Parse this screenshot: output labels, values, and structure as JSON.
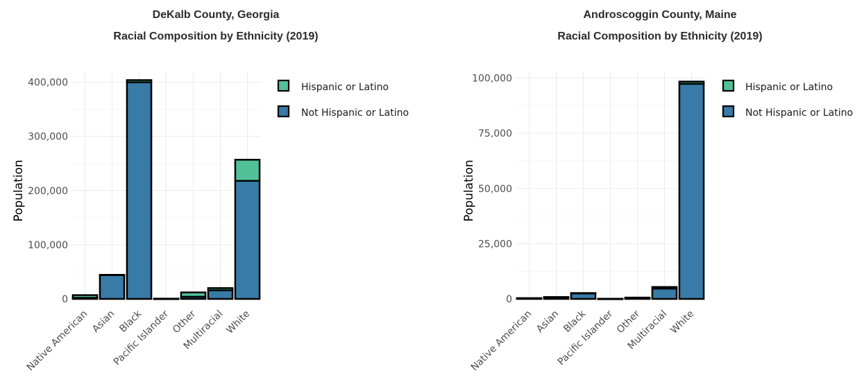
{
  "colors": {
    "hispanic": "#52c19a",
    "not_hispanic": "#377ba6",
    "outline": "#000000",
    "grid": "#ebebeb"
  },
  "chart_data": [
    {
      "type": "bar",
      "stacked": true,
      "title": "DeKalb County, Georgia",
      "subtitle": "Racial Composition by Ethnicity (2019)",
      "xlabel": "",
      "ylabel": "Population",
      "categories": [
        "Native American",
        "Asian",
        "Black",
        "Pacific Islander",
        "Other",
        "Multiracial",
        "White"
      ],
      "series": [
        {
          "name": "Not Hispanic or Latino",
          "color_key": "not_hispanic",
          "values": [
            2000,
            44000,
            400000,
            300,
            4000,
            16000,
            218000
          ]
        },
        {
          "name": "Hispanic or Latino",
          "color_key": "hispanic",
          "values": [
            5000,
            500,
            4000,
            200,
            8000,
            4000,
            39000
          ]
        }
      ],
      "ylim": [
        0,
        420000
      ],
      "yticks": [
        0,
        100000,
        200000,
        300000,
        400000
      ],
      "ytick_labels": [
        "0",
        "100,000",
        "200,000",
        "300,000",
        "400,000"
      ],
      "legend": [
        "Hispanic or Latino",
        "Not Hispanic or Latino"
      ],
      "legend_position": "right",
      "grid": true
    },
    {
      "type": "bar",
      "stacked": true,
      "title": "Androscoggin County, Maine",
      "subtitle": "Racial Composition by Ethnicity (2019)",
      "xlabel": "",
      "ylabel": "Population",
      "categories": [
        "Native American",
        "Asian",
        "Black",
        "Pacific Islander",
        "Other",
        "Multiracial",
        "White"
      ],
      "series": [
        {
          "name": "Not Hispanic or Latino",
          "color_key": "not_hispanic",
          "values": [
            300,
            800,
            2500,
            50,
            300,
            4700,
            97400
          ]
        },
        {
          "name": "Hispanic or Latino",
          "color_key": "hispanic",
          "values": [
            50,
            50,
            150,
            20,
            300,
            700,
            1000
          ]
        }
      ],
      "ylim": [
        0,
        103000
      ],
      "yticks": [
        0,
        25000,
        50000,
        75000,
        100000
      ],
      "ytick_labels": [
        "0",
        "25,000",
        "50,000",
        "75,000",
        "100,000"
      ],
      "legend": [
        "Hispanic or Latino",
        "Not Hispanic or Latino"
      ],
      "legend_position": "right",
      "grid": true
    }
  ]
}
